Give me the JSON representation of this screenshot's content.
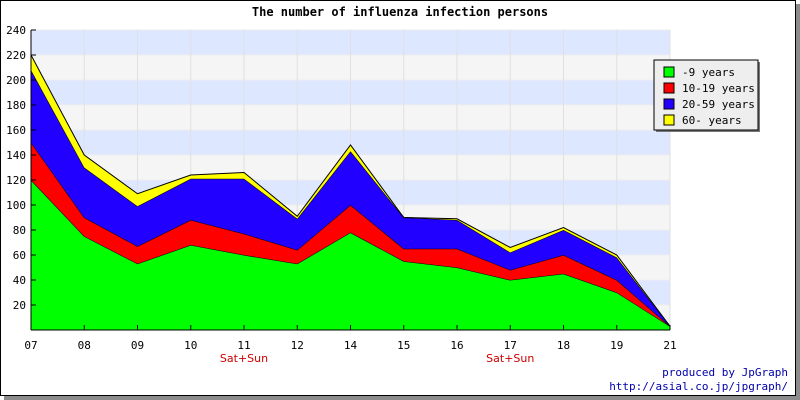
{
  "chart_data": {
    "type": "area",
    "stacked": true,
    "title": "The number of influenza infection persons",
    "xlabel": "",
    "ylabel": "",
    "categories": [
      "07",
      "08",
      "09",
      "10",
      "11",
      "12",
      "14",
      "15",
      "16",
      "17",
      "18",
      "19",
      "21"
    ],
    "sublabels": [
      "",
      "",
      "",
      "",
      "Sat+Sun",
      "",
      "",
      "",
      "",
      "Sat+Sun",
      "",
      "",
      ""
    ],
    "ylim": [
      0,
      240
    ],
    "yticks": [
      20,
      40,
      60,
      80,
      100,
      120,
      140,
      160,
      180,
      200,
      220,
      240
    ],
    "grid": true,
    "legend_position": "top-right",
    "series": [
      {
        "name": "-9 years",
        "color": "#00ff00",
        "values": [
          120,
          75,
          53,
          68,
          60,
          53,
          78,
          55,
          50,
          40,
          45,
          30,
          3
        ]
      },
      {
        "name": "10-19 years",
        "color": "#ff0000",
        "values": [
          30,
          15,
          14,
          20,
          17,
          11,
          22,
          10,
          15,
          8,
          15,
          10,
          0
        ]
      },
      {
        "name": "20-59 years",
        "color": "#2200ff",
        "values": [
          58,
          40,
          32,
          33,
          44,
          25,
          43,
          25,
          23,
          14,
          20,
          18,
          0
        ]
      },
      {
        "name": "60- years",
        "color": "#ffff00",
        "values": [
          12,
          10,
          10,
          3,
          5,
          2,
          5,
          0,
          1,
          4,
          2,
          2,
          0
        ]
      }
    ]
  },
  "credit": {
    "line1": "produced by JpGraph",
    "line2": "http://asial.co.jp/jpgraph/"
  }
}
